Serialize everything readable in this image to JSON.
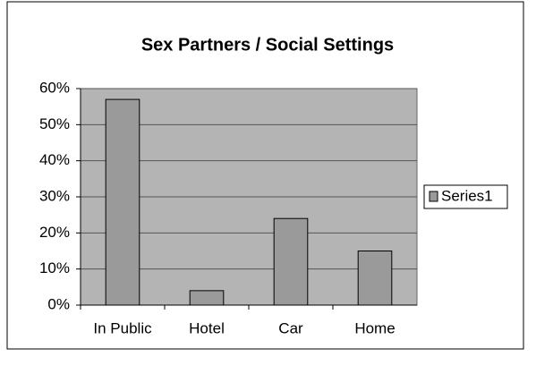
{
  "chart_data": {
    "type": "bar",
    "title": "Sex Partners / Social Settings",
    "categories": [
      "In Public",
      "Hotel",
      "Car",
      "Home"
    ],
    "series": [
      {
        "name": "Series1",
        "color": "#9a9a9a",
        "values": [
          57,
          4,
          24,
          15
        ]
      }
    ],
    "ylim": [
      0,
      60
    ],
    "yticks": [
      {
        "value": 0,
        "label": "0%"
      },
      {
        "value": 10,
        "label": "10%"
      },
      {
        "value": 20,
        "label": "20%"
      },
      {
        "value": 30,
        "label": "30%"
      },
      {
        "value": 40,
        "label": "40%"
      },
      {
        "value": 50,
        "label": "50%"
      },
      {
        "value": 60,
        "label": "60%"
      }
    ],
    "grid": true,
    "legend": "right"
  }
}
